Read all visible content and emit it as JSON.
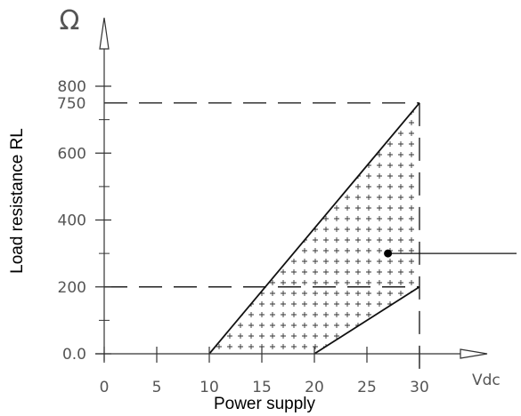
{
  "chart_data": {
    "type": "area",
    "title": "",
    "xlabel": "Power supply",
    "ylabel": "Load resistance RL",
    "x_unit": "Vdc",
    "y_unit": "Ω",
    "xlim": [
      0,
      30
    ],
    "ylim": [
      0,
      800
    ],
    "x_ticks": [
      "0",
      "5",
      "10",
      "15",
      "20",
      "25",
      "30"
    ],
    "y_ticks": [
      "0.0",
      "200",
      "400",
      "600",
      "800"
    ],
    "y_extra_tick": "750",
    "grid": false,
    "reference_lines": [
      {
        "orientation": "horizontal",
        "value": 750,
        "style": "dashed"
      },
      {
        "orientation": "horizontal",
        "value": 200,
        "style": "dashed"
      },
      {
        "orientation": "vertical",
        "value": 30,
        "style": "dashed"
      }
    ],
    "region": {
      "name": "",
      "fill": "cross-hatch",
      "boundary": [
        {
          "x": 10,
          "y": 0
        },
        {
          "x": 30,
          "y": 750
        },
        {
          "x": 30,
          "y": 200
        },
        {
          "x": 20,
          "y": 0
        }
      ]
    },
    "annotation": {
      "x": 27,
      "y": 300
    }
  }
}
